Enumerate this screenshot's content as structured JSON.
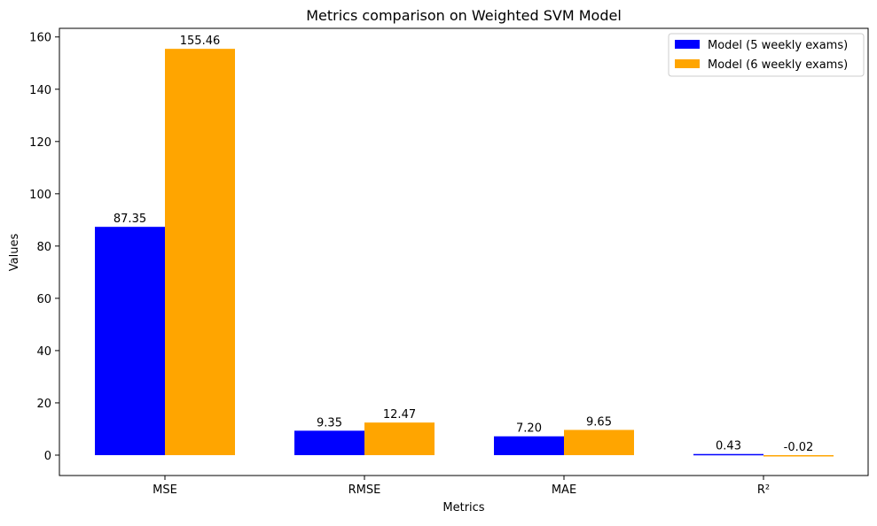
{
  "chart_data": {
    "type": "bar",
    "title": "Metrics comparison on Weighted SVM Model",
    "xlabel": "Metrics",
    "ylabel": "Values",
    "categories": [
      "MSE",
      "RMSE",
      "MAE",
      "R²"
    ],
    "series": [
      {
        "name": "Model (5 weekly exams)",
        "color": "#0000ff",
        "values": [
          87.35,
          9.35,
          7.2,
          0.43
        ],
        "labels": [
          "87.35",
          "9.35",
          "7.20",
          "0.43"
        ]
      },
      {
        "name": "Model (6 weekly exams)",
        "color": "#ffa500",
        "values": [
          155.46,
          12.47,
          9.65,
          -0.02
        ],
        "labels": [
          "155.46",
          "12.47",
          "9.65",
          "-0.02"
        ]
      }
    ],
    "ylim": [
      -7.8,
      163.3
    ],
    "yticks": [
      0,
      20,
      40,
      60,
      80,
      100,
      120,
      140,
      160
    ],
    "grid": false,
    "legend": "top-right"
  }
}
